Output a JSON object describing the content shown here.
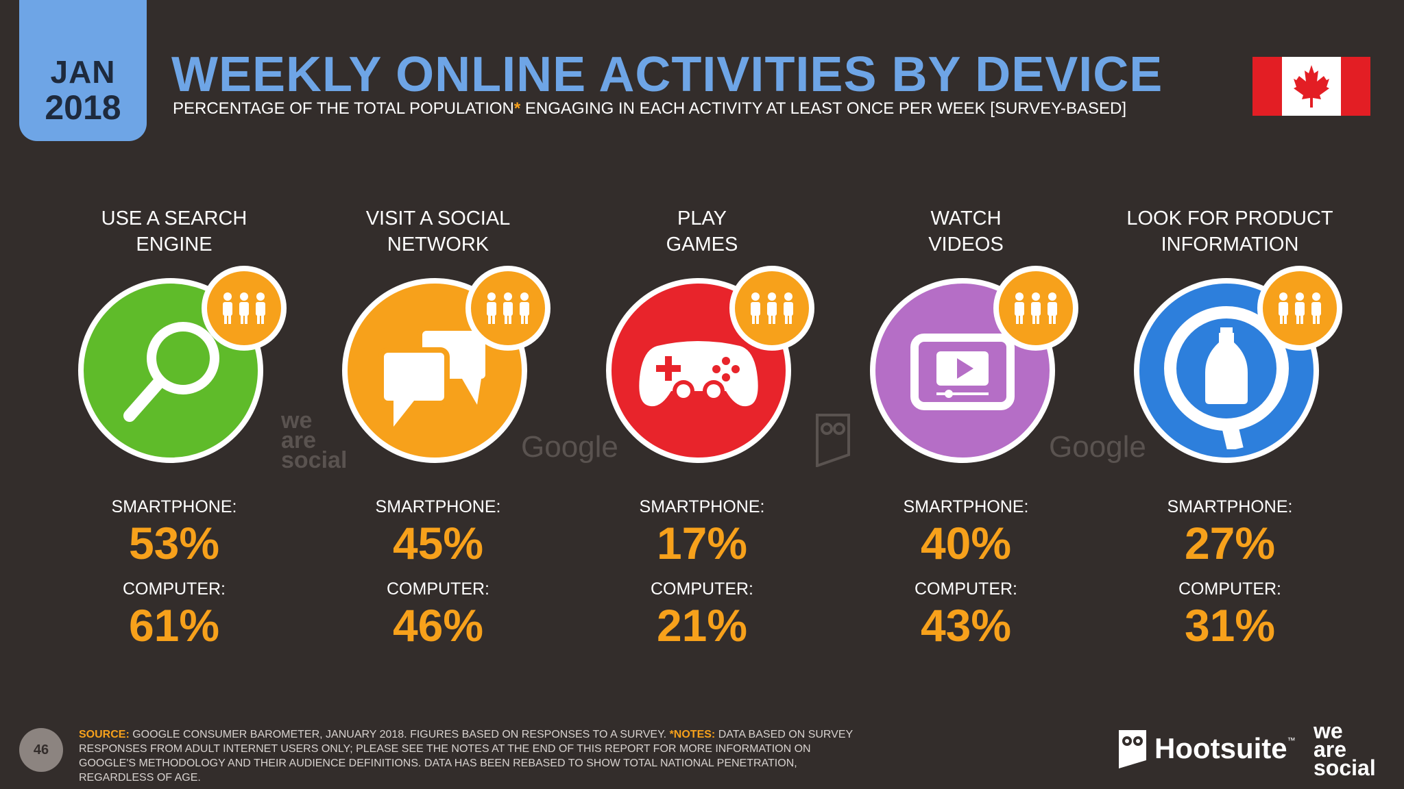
{
  "header": {
    "date_month": "JAN",
    "date_year": "2018",
    "title": "WEEKLY ONLINE ACTIVITIES BY DEVICE",
    "subtitle_before": "PERCENTAGE OF THE TOTAL POPULATION",
    "subtitle_asterisk": "*",
    "subtitle_after": " ENGAGING IN EACH ACTIVITY AT LEAST ONCE PER WEEK [SURVEY-BASED]",
    "flag_icon": "canada-flag-icon"
  },
  "metric_labels": {
    "smartphone": "SMARTPHONE:",
    "computer": "COMPUTER:"
  },
  "activities": [
    {
      "label": "USE A SEARCH ENGINE",
      "smartphone": "53%",
      "computer": "61%",
      "color": "#5fbb2a",
      "icon": "magnifier-icon"
    },
    {
      "label": "VISIT A SOCIAL NETWORK",
      "smartphone": "45%",
      "computer": "46%",
      "color": "#f7a11b",
      "icon": "chat-bubbles-icon"
    },
    {
      "label": "PLAY GAMES",
      "smartphone": "17%",
      "computer": "21%",
      "color": "#e8242b",
      "icon": "gamepad-icon"
    },
    {
      "label": "WATCH VIDEOS",
      "smartphone": "40%",
      "computer": "43%",
      "color": "#b56ec6",
      "icon": "video-player-icon"
    },
    {
      "label": "LOOK FOR PRODUCT INFORMATION",
      "smartphone": "27%",
      "computer": "31%",
      "color": "#2d7fdc",
      "icon": "product-search-icon"
    }
  ],
  "watermarks": {
    "was_line1": "we",
    "was_line2": "are",
    "was_line3": "social",
    "google": "Google"
  },
  "footer": {
    "page_number": "46",
    "source_label": "SOURCE:",
    "source_text": " GOOGLE CONSUMER BAROMETER, JANUARY 2018. FIGURES BASED ON RESPONSES TO A SURVEY. ",
    "notes_label": "*NOTES:",
    "notes_text": " DATA BASED ON SURVEY RESPONSES FROM ADULT INTERNET USERS ONLY; PLEASE SEE THE NOTES AT THE END OF THIS REPORT FOR MORE INFORMATION ON GOOGLE'S METHODOLOGY AND THEIR AUDIENCE DEFINITIONS. DATA HAS BEEN REBASED TO SHOW TOTAL NATIONAL PENETRATION, REGARDLESS OF AGE.",
    "hootsuite_name": "Hootsuite",
    "hootsuite_tm": "™",
    "was_line1": "we",
    "was_line2": "are",
    "was_line3": "social"
  }
}
